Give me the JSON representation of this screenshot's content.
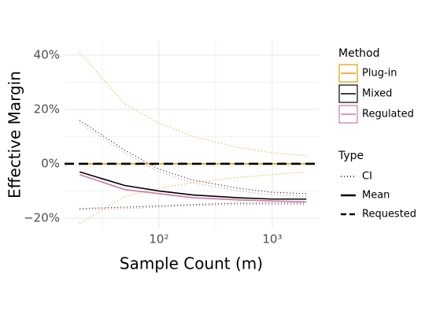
{
  "chart_data": {
    "type": "line",
    "x_label": "Sample Count (m)",
    "y_label": "Effective Margin",
    "x_log": true,
    "grid": true,
    "x": [
      20,
      50,
      100,
      200,
      500,
      1000,
      2000
    ],
    "xlim": [
      14.7,
      2570
    ],
    "xticks": [
      {
        "value": 100,
        "label": "10²"
      },
      {
        "value": 1000,
        "label": "10³"
      }
    ],
    "x_minor_grid": [
      31.6,
      316.2
    ],
    "ylim": [
      -23.8,
      45.2
    ],
    "yticks": [
      {
        "value": 40,
        "label": "40%"
      },
      {
        "value": 20,
        "label": "20%"
      },
      {
        "value": 0,
        "label": "0%"
      },
      {
        "value": -20,
        "label": "−20%"
      }
    ],
    "y_minor_grid": [
      30,
      10,
      -10
    ],
    "method_legend_title": "Method",
    "type_legend_title": "Type",
    "types": [
      "CI",
      "Mean",
      "Requested"
    ],
    "requested": 0,
    "methods": [
      {
        "name": "Plug-in",
        "color": "#E69F00",
        "mean": [
          0,
          0,
          0,
          0,
          0,
          0,
          0
        ],
        "ci_upper": [
          41,
          22,
          15,
          10,
          6,
          4,
          3
        ],
        "ci_lower": [
          -22,
          -12,
          -9,
          -7,
          -5,
          -4,
          -3
        ]
      },
      {
        "name": "Mixed",
        "color": "#000000",
        "mean": [
          -3,
          -8,
          -10,
          -11.5,
          -12.5,
          -13,
          -13
        ],
        "ci_upper": [
          16,
          5,
          -2,
          -6,
          -9,
          -10.5,
          -11
        ],
        "ci_lower": [
          -16.5,
          -16,
          -15.5,
          -15,
          -14.5,
          -14.5,
          -14.5
        ]
      },
      {
        "name": "Regulated",
        "color": "#CC79A7",
        "mean": [
          -4,
          -9.5,
          -11,
          -12.5,
          -13.3,
          -13.7,
          -14
        ],
        "ci_upper": [
          15,
          4,
          -3,
          -7,
          -10,
          -11.5,
          -12
        ],
        "ci_lower": [
          -17,
          -16.5,
          -16,
          -15.5,
          -15,
          -15,
          -15
        ]
      }
    ]
  }
}
